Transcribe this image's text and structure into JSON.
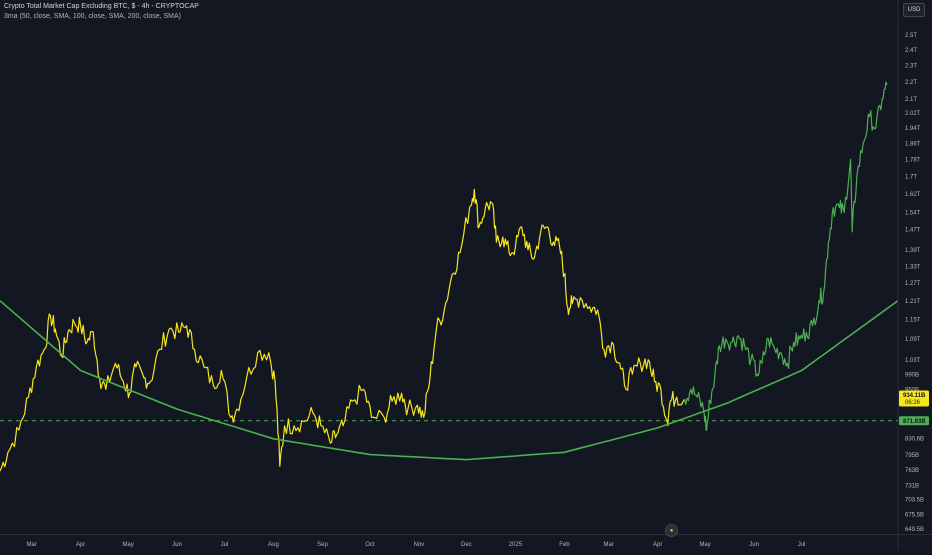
{
  "header": {
    "title": "Crypto Total Market Cap Excluding BTC, $ - 4h - CRYPTOCAP",
    "indicator": "3ma (50, close, SMA, 100, close, SMA, 200, close, SMA)",
    "currency": "USD"
  },
  "colors": {
    "background": "#131722",
    "price_line_2024": "#f5e61e",
    "price_line_2025": "#4caf50",
    "ma_curve": "#4caf50",
    "price_label_bg": "#f5e61e",
    "level_label_bg": "#4caf50",
    "axis_text": "#b2b5be"
  },
  "chart_data": {
    "type": "line",
    "y_scale": "log",
    "ylim": [
      640,
      2750
    ],
    "x_range": [
      "2024-02-10",
      "2025-08-31"
    ],
    "x_ticks": [
      {
        "label": "Mar",
        "date": "2024-03-01"
      },
      {
        "label": "Apr",
        "date": "2024-04-01"
      },
      {
        "label": "May",
        "date": "2024-05-01"
      },
      {
        "label": "Jun",
        "date": "2024-06-01"
      },
      {
        "label": "Jul",
        "date": "2024-07-01"
      },
      {
        "label": "Aug",
        "date": "2024-08-01"
      },
      {
        "label": "Sep",
        "date": "2024-09-01"
      },
      {
        "label": "Oct",
        "date": "2024-10-01"
      },
      {
        "label": "Nov",
        "date": "2024-11-01"
      },
      {
        "label": "Dec",
        "date": "2024-12-01"
      },
      {
        "label": "2025",
        "date": "2025-01-01"
      },
      {
        "label": "Feb",
        "date": "2025-02-01"
      },
      {
        "label": "Mar",
        "date": "2025-03-01"
      },
      {
        "label": "Apr",
        "date": "2025-04-01"
      },
      {
        "label": "May",
        "date": "2025-05-01"
      },
      {
        "label": "Jun",
        "date": "2025-06-01"
      },
      {
        "label": "Jul",
        "date": "2025-07-01"
      }
    ],
    "y_ticks": [
      {
        "label": "2.5T",
        "v": 2500
      },
      {
        "label": "2.4T",
        "v": 2400
      },
      {
        "label": "2.3T",
        "v": 2300
      },
      {
        "label": "2.2T",
        "v": 2200
      },
      {
        "label": "2.1T",
        "v": 2100
      },
      {
        "label": "2.02T",
        "v": 2020
      },
      {
        "label": "1.94T",
        "v": 1940
      },
      {
        "label": "1.86T",
        "v": 1860
      },
      {
        "label": "1.78T",
        "v": 1780
      },
      {
        "label": "1.7T",
        "v": 1700
      },
      {
        "label": "1.62T",
        "v": 1620
      },
      {
        "label": "1.54T",
        "v": 1540
      },
      {
        "label": "1.47T",
        "v": 1470
      },
      {
        "label": "1.39T",
        "v": 1390
      },
      {
        "label": "1.33T",
        "v": 1330
      },
      {
        "label": "1.27T",
        "v": 1270
      },
      {
        "label": "1.21T",
        "v": 1210
      },
      {
        "label": "1.15T",
        "v": 1150
      },
      {
        "label": "1.09T",
        "v": 1090
      },
      {
        "label": "1.03T",
        "v": 1030
      },
      {
        "label": "990B",
        "v": 990
      },
      {
        "label": "950B",
        "v": 950
      },
      {
        "label": "830.6B",
        "v": 830.6
      },
      {
        "label": "795B",
        "v": 795
      },
      {
        "label": "763B",
        "v": 763
      },
      {
        "label": "731B",
        "v": 731
      },
      {
        "label": "703.5B",
        "v": 703.5
      },
      {
        "label": "675.5B",
        "v": 675.5
      },
      {
        "label": "649.5B",
        "v": 649.5
      }
    ],
    "series": [
      {
        "name": "",
        "color": "#f5e61e",
        "points": [
          [
            "2024-02-10",
            760
          ],
          [
            "2024-02-15",
            800
          ],
          [
            "2024-02-22",
            850
          ],
          [
            "2024-02-28",
            930
          ],
          [
            "2024-03-04",
            1010
          ],
          [
            "2024-03-09",
            1060
          ],
          [
            "2024-03-13",
            1160
          ],
          [
            "2024-03-16",
            1120
          ],
          [
            "2024-03-20",
            1040
          ],
          [
            "2024-03-24",
            1110
          ],
          [
            "2024-03-28",
            1140
          ],
          [
            "2024-04-01",
            1130
          ],
          [
            "2024-04-05",
            1080
          ],
          [
            "2024-04-09",
            1110
          ],
          [
            "2024-04-13",
            980
          ],
          [
            "2024-04-17",
            950
          ],
          [
            "2024-04-23",
            1020
          ],
          [
            "2024-04-28",
            970
          ],
          [
            "2024-05-02",
            940
          ],
          [
            "2024-05-06",
            1010
          ],
          [
            "2024-05-11",
            980
          ],
          [
            "2024-05-15",
            970
          ],
          [
            "2024-05-21",
            1060
          ],
          [
            "2024-05-27",
            1120
          ],
          [
            "2024-06-02",
            1110
          ],
          [
            "2024-06-07",
            1130
          ],
          [
            "2024-06-12",
            1060
          ],
          [
            "2024-06-18",
            1010
          ],
          [
            "2024-06-24",
            960
          ],
          [
            "2024-06-29",
            1000
          ],
          [
            "2024-07-05",
            880
          ],
          [
            "2024-07-09",
            900
          ],
          [
            "2024-07-15",
            980
          ],
          [
            "2024-07-22",
            1050
          ],
          [
            "2024-07-29",
            1050
          ],
          [
            "2024-08-02",
            970
          ],
          [
            "2024-08-05",
            770
          ],
          [
            "2024-08-08",
            860
          ],
          [
            "2024-08-14",
            860
          ],
          [
            "2024-08-20",
            870
          ],
          [
            "2024-08-26",
            890
          ],
          [
            "2024-08-31",
            860
          ],
          [
            "2024-09-06",
            820
          ],
          [
            "2024-09-10",
            840
          ],
          [
            "2024-09-14",
            860
          ],
          [
            "2024-09-20",
            920
          ],
          [
            "2024-09-27",
            950
          ],
          [
            "2024-10-02",
            880
          ],
          [
            "2024-10-10",
            880
          ],
          [
            "2024-10-15",
            920
          ],
          [
            "2024-10-21",
            940
          ],
          [
            "2024-10-25",
            900
          ],
          [
            "2024-10-31",
            910
          ],
          [
            "2024-11-04",
            880
          ],
          [
            "2024-11-08",
            980
          ],
          [
            "2024-11-12",
            1120
          ],
          [
            "2024-11-17",
            1180
          ],
          [
            "2024-11-22",
            1300
          ],
          [
            "2024-11-27",
            1380
          ],
          [
            "2024-12-03",
            1560
          ],
          [
            "2024-12-06",
            1640
          ],
          [
            "2024-12-09",
            1480
          ],
          [
            "2024-12-13",
            1560
          ],
          [
            "2024-12-17",
            1580
          ],
          [
            "2024-12-20",
            1420
          ],
          [
            "2024-12-24",
            1440
          ],
          [
            "2024-12-28",
            1380
          ],
          [
            "2025-01-01",
            1400
          ],
          [
            "2025-01-05",
            1480
          ],
          [
            "2025-01-09",
            1390
          ],
          [
            "2025-01-13",
            1360
          ],
          [
            "2025-01-17",
            1460
          ],
          [
            "2025-01-21",
            1480
          ],
          [
            "2025-01-25",
            1420
          ],
          [
            "2025-01-29",
            1400
          ],
          [
            "2025-02-01",
            1300
          ],
          [
            "2025-02-03",
            1190
          ],
          [
            "2025-02-06",
            1200
          ],
          [
            "2025-02-11",
            1220
          ],
          [
            "2025-02-17",
            1190
          ],
          [
            "2025-02-22",
            1180
          ],
          [
            "2025-02-26",
            1060
          ],
          [
            "2025-03-03",
            1080
          ],
          [
            "2025-03-08",
            1020
          ],
          [
            "2025-03-11",
            960
          ],
          [
            "2025-03-16",
            990
          ],
          [
            "2025-03-21",
            1020
          ],
          [
            "2025-03-26",
            1030
          ],
          [
            "2025-03-30",
            970
          ],
          [
            "2025-04-03",
            950
          ],
          [
            "2025-04-07",
            870
          ],
          [
            "2025-04-09",
            920
          ],
          [
            "2025-04-13",
            930
          ],
          [
            "2025-04-18",
            925
          ]
        ]
      },
      {
        "name": "",
        "color": "#4caf50",
        "points": [
          [
            "2025-04-18",
            925
          ],
          [
            "2025-04-22",
            950
          ],
          [
            "2025-04-26",
            930
          ],
          [
            "2025-04-30",
            900
          ],
          [
            "2025-05-02",
            850
          ],
          [
            "2025-05-04",
            920
          ],
          [
            "2025-05-07",
            980
          ],
          [
            "2025-05-10",
            1070
          ],
          [
            "2025-05-14",
            1090
          ],
          [
            "2025-05-18",
            1080
          ],
          [
            "2025-05-22",
            1100
          ],
          [
            "2025-05-26",
            1070
          ],
          [
            "2025-05-30",
            1030
          ],
          [
            "2025-06-03",
            990
          ],
          [
            "2025-06-06",
            1020
          ],
          [
            "2025-06-10",
            1090
          ],
          [
            "2025-06-14",
            1060
          ],
          [
            "2025-06-18",
            1050
          ],
          [
            "2025-06-22",
            1020
          ],
          [
            "2025-06-26",
            1080
          ],
          [
            "2025-06-30",
            1090
          ],
          [
            "2025-07-04",
            1110
          ],
          [
            "2025-07-08",
            1130
          ],
          [
            "2025-07-12",
            1210
          ],
          [
            "2025-07-15",
            1240
          ],
          [
            "2025-07-18",
            1420
          ],
          [
            "2025-07-21",
            1560
          ],
          [
            "2025-07-25",
            1560
          ],
          [
            "2025-07-28",
            1540
          ],
          [
            "2025-08-01",
            1780
          ],
          [
            "2025-08-02",
            1460
          ],
          [
            "2025-08-05",
            1700
          ],
          [
            "2025-08-09",
            1860
          ],
          [
            "2025-08-13",
            2000
          ],
          [
            "2025-08-17",
            1940
          ],
          [
            "2025-08-21",
            2100
          ],
          [
            "2025-08-24",
            2180
          ]
        ]
      },
      {
        "name": "",
        "color": "#4caf50",
        "points": [
          [
            "2024-02-10",
            1210
          ],
          [
            "2024-04-01",
            1000
          ],
          [
            "2024-06-01",
            900
          ],
          [
            "2024-08-01",
            830
          ],
          [
            "2024-10-01",
            795
          ],
          [
            "2024-12-01",
            784
          ],
          [
            "2025-02-01",
            800
          ],
          [
            "2025-04-01",
            855
          ],
          [
            "2025-05-15",
            915
          ],
          [
            "2025-07-01",
            1000
          ],
          [
            "2025-08-31",
            1210
          ]
        ]
      }
    ],
    "horizontal_level": 871.93,
    "price_label": {
      "value_text": "934.11B",
      "countdown": "06:26",
      "value": 934.11
    },
    "level_label": {
      "value_text": "871.93B",
      "value": 871.93
    },
    "grid": false
  }
}
